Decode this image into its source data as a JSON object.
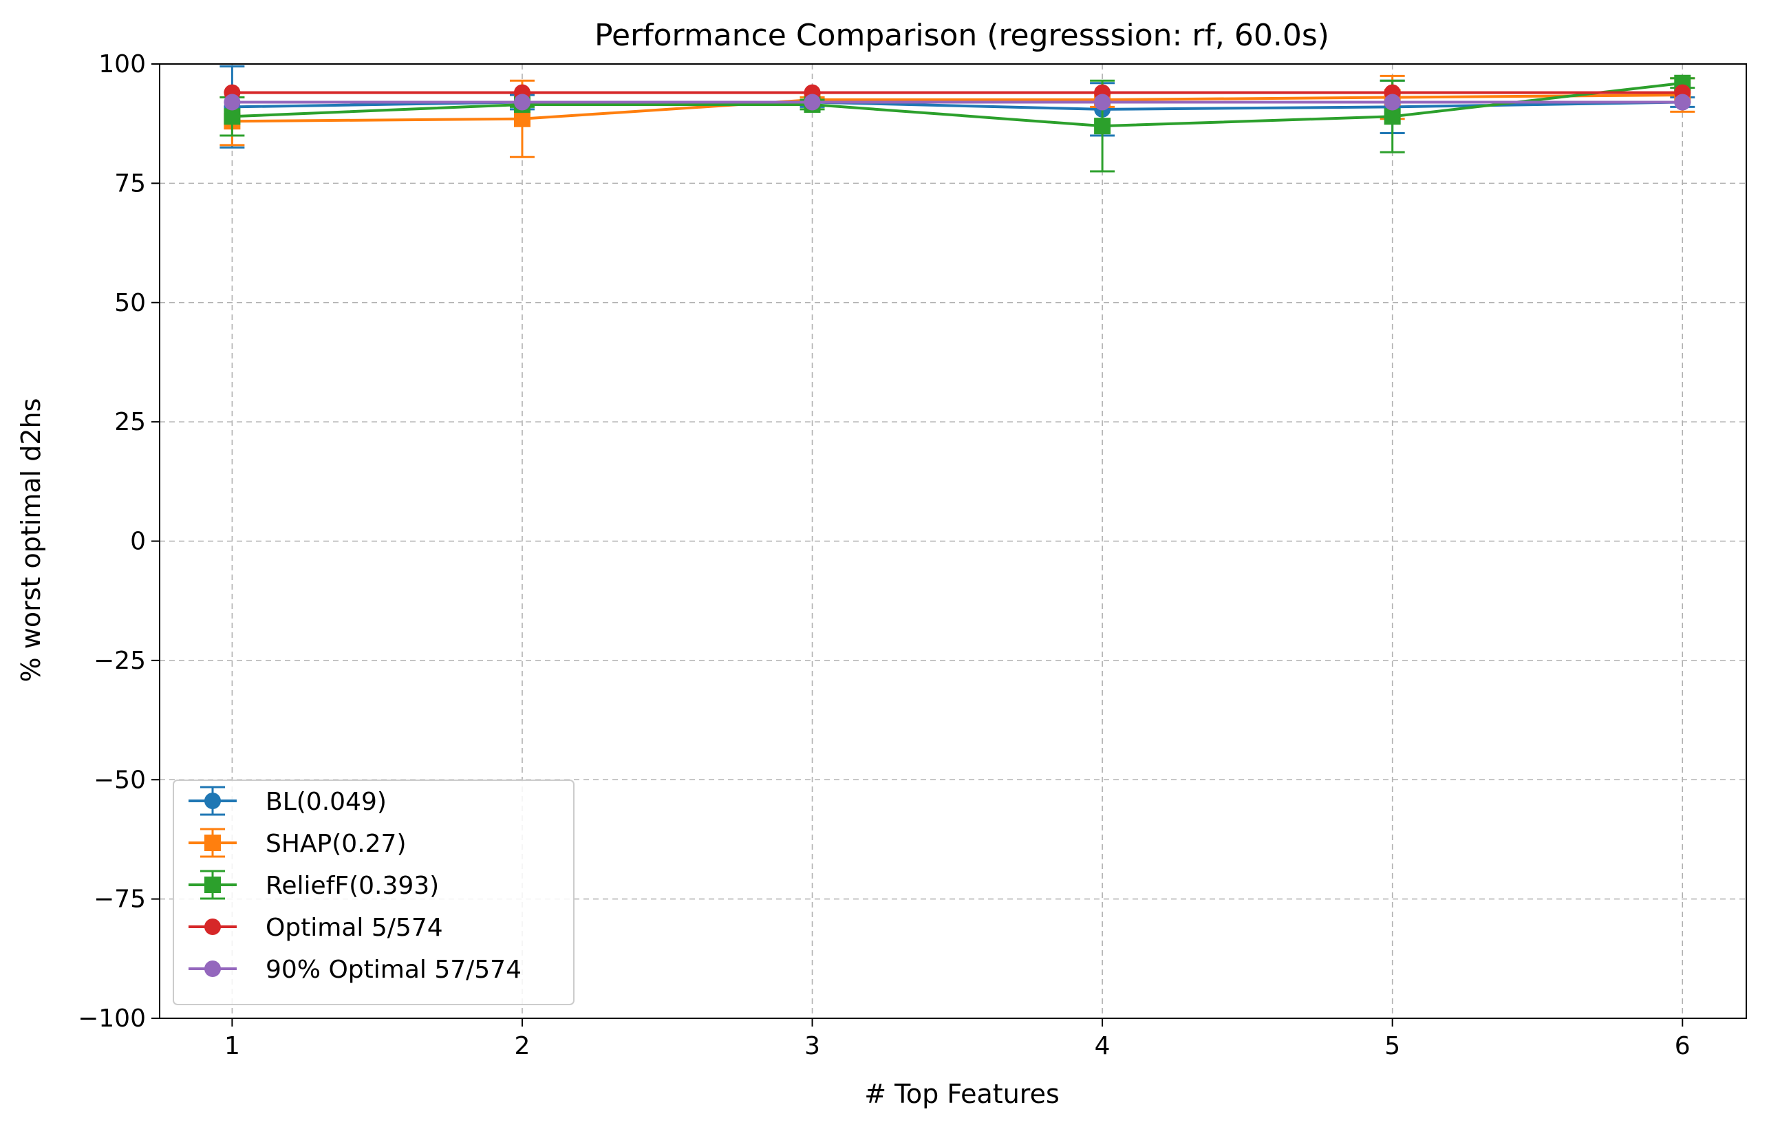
{
  "chart_data": {
    "type": "line",
    "title": "Performance Comparison (regresssion: rf, 60.0s)",
    "xlabel": "# Top Features",
    "ylabel": "% worst optimal d2hs",
    "x": [
      1,
      2,
      3,
      4,
      5,
      6
    ],
    "x_ticks": [
      "1",
      "2",
      "3",
      "4",
      "5",
      "6"
    ],
    "xlim": [
      0.75,
      6.22
    ],
    "ylim": [
      -100,
      100
    ],
    "y_ticks": [
      "100",
      "75",
      "50",
      "25",
      "0",
      "−25",
      "−50",
      "−75",
      "−100"
    ],
    "y_tick_values": [
      100,
      75,
      50,
      25,
      0,
      -25,
      -50,
      -75,
      -100
    ],
    "grid": true,
    "legend_position": "lower left",
    "series": [
      {
        "name": "BL(0.049)",
        "color": "#1f77b4",
        "marker": "circle",
        "errorbars": true,
        "values": [
          91,
          92,
          92,
          90.5,
          91,
          92
        ],
        "err": [
          8.5,
          1.5,
          1,
          5.5,
          5.5,
          1
        ]
      },
      {
        "name": "SHAP(0.27)",
        "color": "#ff7f0e",
        "marker": "square",
        "errorbars": true,
        "values": [
          88,
          88.5,
          92.5,
          92.5,
          93,
          93.5
        ],
        "err": [
          5,
          8,
          0.5,
          1.5,
          4.5,
          3.5
        ]
      },
      {
        "name": "ReliefF(0.393)",
        "color": "#2ca02c",
        "marker": "square",
        "errorbars": true,
        "values": [
          89,
          91.5,
          91.5,
          87,
          89,
          96
        ],
        "err": [
          4,
          0.5,
          1,
          9.5,
          7.5,
          1
        ]
      },
      {
        "name": "Optimal 5/574",
        "color": "#d62728",
        "marker": "circle",
        "errorbars": false,
        "values": [
          94,
          94,
          94,
          94,
          94,
          94
        ]
      },
      {
        "name": "90% Optimal 57/574",
        "color": "#9467bd",
        "marker": "circle",
        "errorbars": false,
        "values": [
          92,
          92,
          92,
          92,
          92,
          92
        ]
      }
    ]
  }
}
